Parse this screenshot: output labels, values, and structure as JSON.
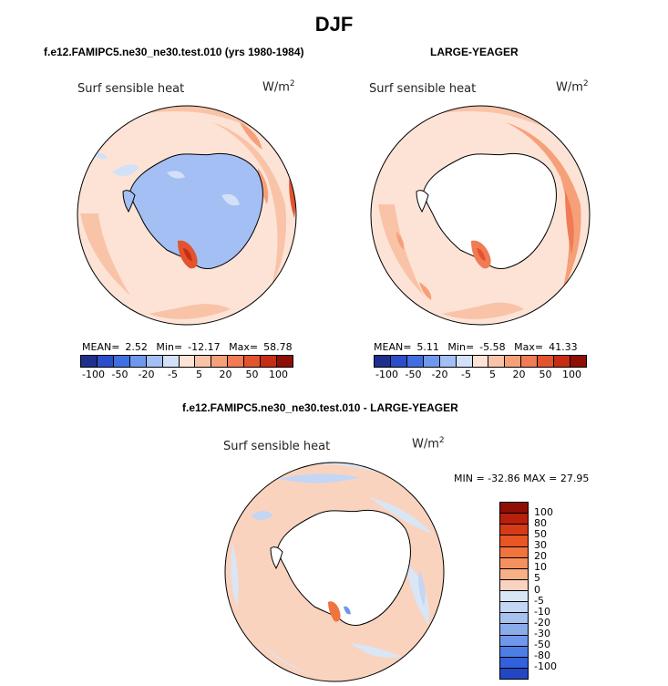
{
  "title": "DJF",
  "colors": {
    "scale": [
      "#1f2f8e",
      "#2d4ec9",
      "#3f6fe0",
      "#6f98ec",
      "#a3bff3",
      "#d2e1f8",
      "#fde3d6",
      "#f9c3a8",
      "#f6a07a",
      "#f07b55",
      "#e3532e",
      "#c52e14",
      "#8f0e06"
    ],
    "diff_scale": [
      "#8f0e06",
      "#b81f0c",
      "#d63b18",
      "#e85626",
      "#f1733e",
      "#f4915f",
      "#f7af88",
      "#fad3bf",
      "#d9e6f6",
      "#c3d6f4",
      "#a8c2ef",
      "#8aacea",
      "#6f98ec",
      "#4d7ee6",
      "#3361dc",
      "#2346c2",
      "#1432a0",
      "#0b1f7a"
    ],
    "land": "#ffffff",
    "coast": "#000000"
  },
  "panels": [
    {
      "title": "f.e12.FAMIPC5.ne30_ne30.test.010 (yrs 1980-1984)",
      "var": "Surf sensible heat",
      "units": "W/m",
      "units_exp": "2",
      "mean_label": "MEAN=",
      "mean": "2.52",
      "min_label": "Min=",
      "min": "-12.17",
      "max_label": "Max=",
      "max": "58.78",
      "ticks": [
        "-100",
        "-50",
        "-20",
        "-5",
        "5",
        "20",
        "50",
        "100"
      ]
    },
    {
      "title": "LARGE-YEAGER",
      "var": "Surf sensible heat",
      "units": "W/m",
      "units_exp": "2",
      "mean_label": "MEAN=",
      "mean": "5.11",
      "min_label": "Min=",
      "min": "-5.58",
      "max_label": "Max=",
      "max": "41.33",
      "ticks": [
        "-100",
        "-50",
        "-20",
        "-5",
        "5",
        "20",
        "50",
        "100"
      ]
    }
  ],
  "diff": {
    "title": "f.e12.FAMIPC5.ne30_ne30.test.010 - LARGE-YEAGER",
    "var": "Surf sensible heat",
    "units": "W/m",
    "units_exp": "2",
    "minmax": "MIN = -32.86 MAX =  27.95",
    "levels": [
      "100",
      "80",
      "50",
      "30",
      "20",
      "10",
      "5",
      "0",
      "-5",
      "-10",
      "-20",
      "-30",
      "-50",
      "-80",
      "-100"
    ]
  }
}
